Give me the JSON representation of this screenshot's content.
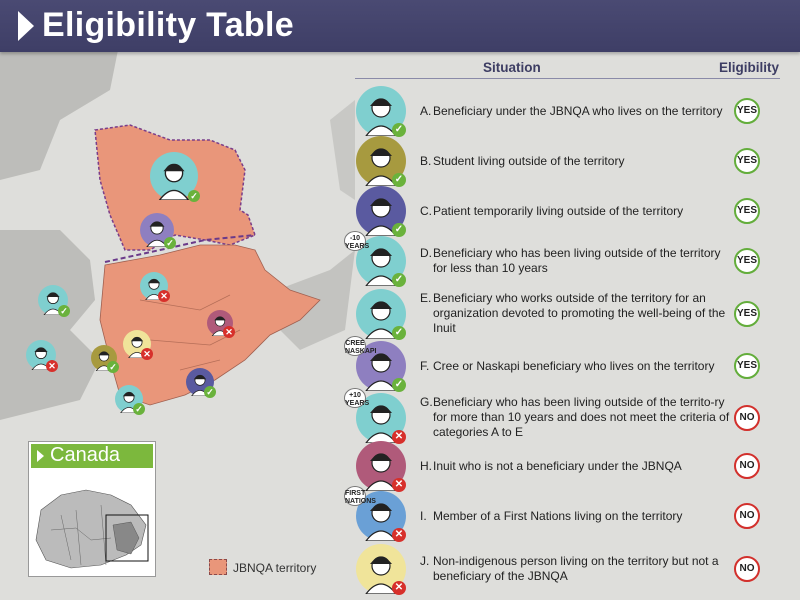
{
  "title": "Eligibility Table",
  "columns": {
    "situation": "Situation",
    "eligibility": "Eligibility"
  },
  "rows": [
    {
      "letter": "A.",
      "text": "Beneficiary under the JBNQA who lives on the territory",
      "eligibility": "YES",
      "badge": "",
      "bg": "#7fcfcf"
    },
    {
      "letter": "B.",
      "text": "Student living outside of the territory",
      "eligibility": "YES",
      "badge": "",
      "bg": "#a79a3f"
    },
    {
      "letter": "C.",
      "text": "Patient temporarily living outside of the territory",
      "eligibility": "YES",
      "badge": "",
      "bg": "#5a5aa0"
    },
    {
      "letter": "D.",
      "text": "Beneficiary who has been living outside of the territory for less than 10 years",
      "eligibility": "YES",
      "badge": "-10 YEARS",
      "bg": "#7fcfcf"
    },
    {
      "letter": "E.",
      "text": "Beneficiary who works outside of the territory for an organization devoted to promoting the well-being of the Inuit",
      "eligibility": "YES",
      "badge": "",
      "bg": "#7fcfcf"
    },
    {
      "letter": "F.",
      "text": "Cree or Naskapi beneficiary who lives on the territory",
      "eligibility": "YES",
      "badge": "CREE NASKAPI",
      "bg": "#8e7fc0"
    },
    {
      "letter": "G.",
      "text": "Beneficiary who has been living outside of the territo-ry for more than 10 years and does not meet the criteria of categories A to E",
      "eligibility": "NO",
      "badge": "+10 YEARS",
      "bg": "#7fcfcf"
    },
    {
      "letter": "H.",
      "text": "Inuit who is not a beneficiary under the JBNQA",
      "eligibility": "NO",
      "badge": "",
      "bg": "#b05a7a"
    },
    {
      "letter": "I.",
      "text": "Member of a First Nations living on the territory",
      "eligibility": "NO",
      "badge": "FIRST NATIONS",
      "bg": "#6aa0d6"
    },
    {
      "letter": "J.",
      "text": "Non-indigenous person living on the territory but not a beneficiary of the JBNQA",
      "eligibility": "NO",
      "badge": "",
      "bg": "#f0e49a"
    }
  ],
  "inset_title": "Canada",
  "legend": "JBNQA territory",
  "colors": {
    "territory": "#e9967a",
    "header": "#434369",
    "yes": "#63ad3b",
    "no": "#d2302c",
    "inset": "#7cb83d"
  }
}
